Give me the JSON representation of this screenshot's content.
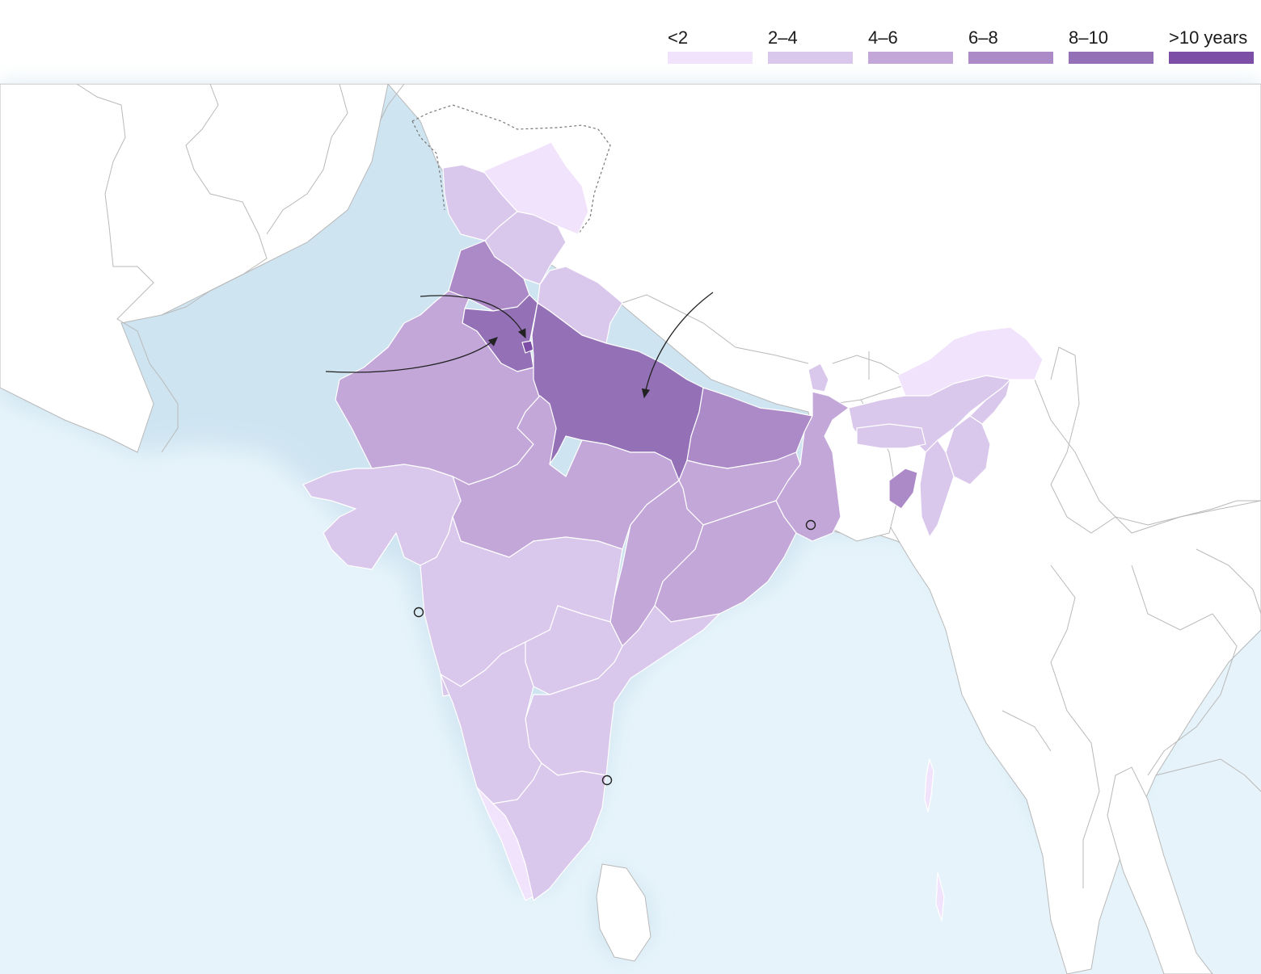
{
  "legend": {
    "items": [
      {
        "label": "<2",
        "color": "#f1e3fb"
      },
      {
        "label": "2–4",
        "color": "#dac8ec"
      },
      {
        "label": "4–6",
        "color": "#c3a7d9"
      },
      {
        "label": "6–8",
        "color": "#ac8ac8"
      },
      {
        "label": "8–10",
        "color": "#9470b7"
      },
      {
        "label": ">10 years",
        "color": "#7d4ea6"
      }
    ]
  },
  "colors": {
    "sea": "#e6f3fa",
    "land": "#ffffff",
    "border": "#b9b9b9"
  },
  "regions": [
    {
      "name": "jammu-kashmir",
      "bin": 1
    },
    {
      "name": "ladakh",
      "bin": 0
    },
    {
      "name": "himachal-pradesh",
      "bin": 1
    },
    {
      "name": "punjab",
      "bin": 3
    },
    {
      "name": "uttarakhand",
      "bin": 1
    },
    {
      "name": "haryana",
      "bin": 4
    },
    {
      "name": "delhi",
      "bin": 5
    },
    {
      "name": "rajasthan",
      "bin": 2
    },
    {
      "name": "uttar-pradesh",
      "bin": 4
    },
    {
      "name": "bihar",
      "bin": 3
    },
    {
      "name": "jharkhand",
      "bin": 2
    },
    {
      "name": "west-bengal",
      "bin": 2
    },
    {
      "name": "sikkim",
      "bin": 1
    },
    {
      "name": "madhya-pradesh",
      "bin": 2
    },
    {
      "name": "gujarat",
      "bin": 1
    },
    {
      "name": "chhattisgarh",
      "bin": 2
    },
    {
      "name": "odisha",
      "bin": 2
    },
    {
      "name": "maharashtra",
      "bin": 1
    },
    {
      "name": "telangana",
      "bin": 1
    },
    {
      "name": "andhra-pradesh",
      "bin": 1
    },
    {
      "name": "karnataka",
      "bin": 1
    },
    {
      "name": "goa",
      "bin": 1
    },
    {
      "name": "kerala",
      "bin": 0
    },
    {
      "name": "tamil-nadu",
      "bin": 1
    },
    {
      "name": "arunachal-pradesh",
      "bin": 0
    },
    {
      "name": "assam",
      "bin": 1
    },
    {
      "name": "meghalaya",
      "bin": 1
    },
    {
      "name": "nagaland",
      "bin": 1
    },
    {
      "name": "manipur",
      "bin": 1
    },
    {
      "name": "mizoram",
      "bin": 1
    },
    {
      "name": "tripura",
      "bin": 3
    },
    {
      "name": "andaman-nicobar",
      "bin": 0
    }
  ]
}
